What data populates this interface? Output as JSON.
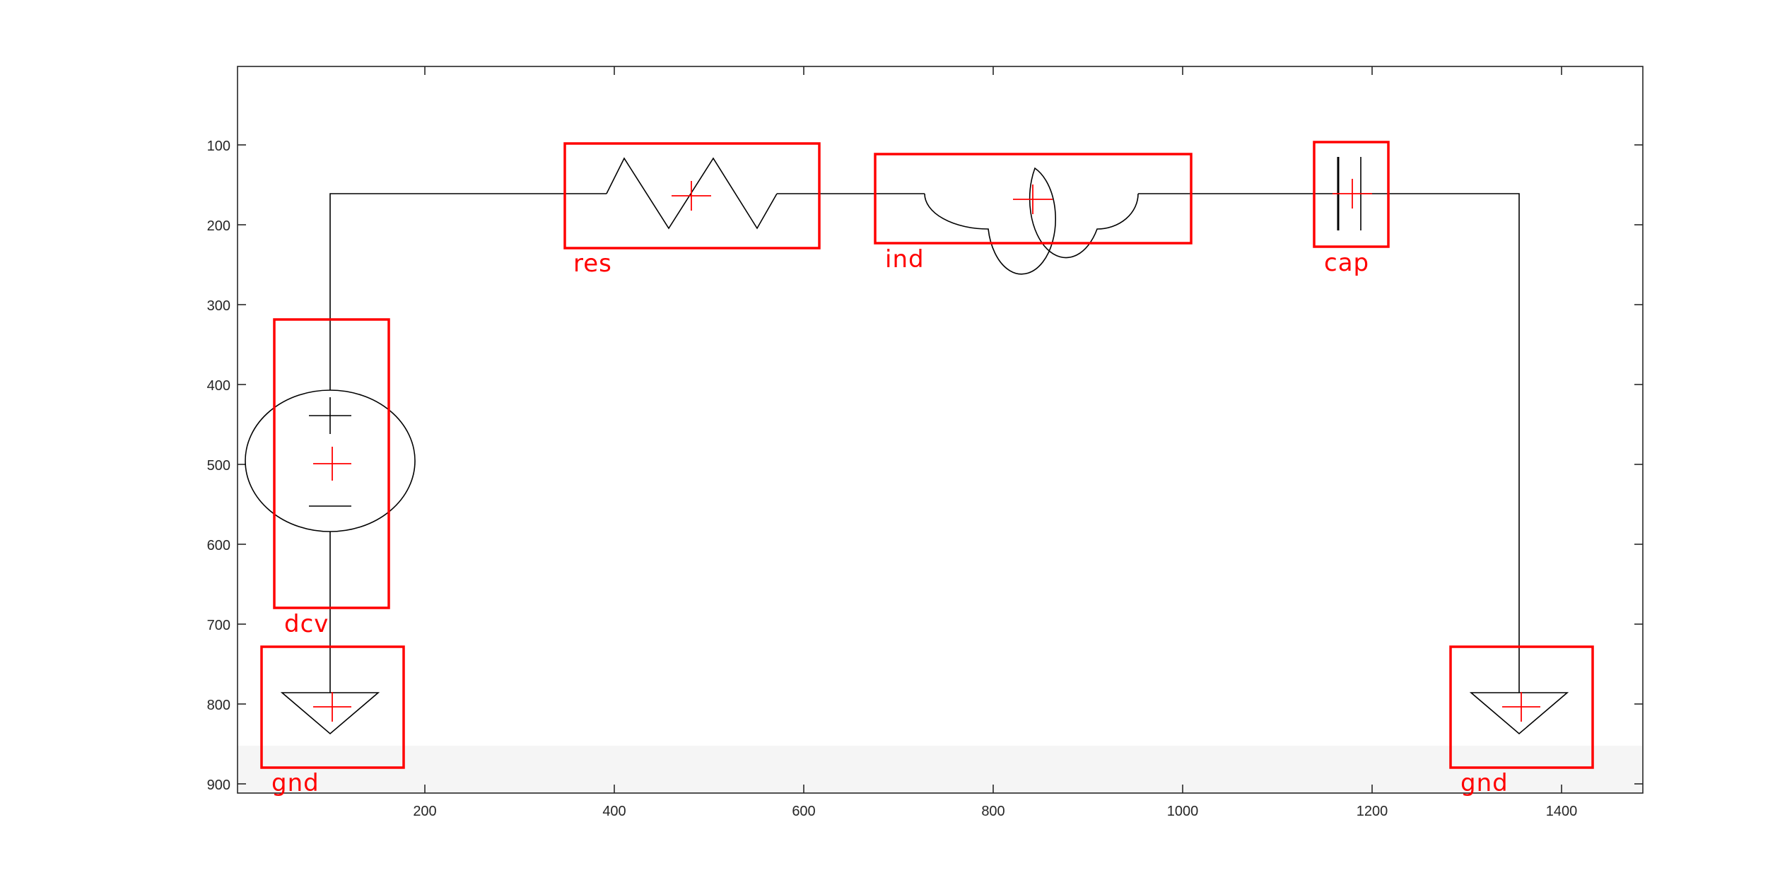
{
  "axes": {
    "x_ticks": [
      "200",
      "400",
      "600",
      "800",
      "1000",
      "1200",
      "1400"
    ],
    "y_ticks": [
      "100",
      "200",
      "300",
      "400",
      "500",
      "600",
      "700",
      "800",
      "900"
    ]
  },
  "components": [
    {
      "id": "res",
      "label": "res"
    },
    {
      "id": "ind",
      "label": "ind"
    },
    {
      "id": "cap",
      "label": "cap"
    },
    {
      "id": "dcv",
      "label": "dcv"
    },
    {
      "id": "gnd-left",
      "label": "gnd"
    },
    {
      "id": "gnd-right",
      "label": "gnd"
    }
  ],
  "colors": {
    "detection_box": "#ff0000",
    "circuit_line": "#000000",
    "axes": "#262626",
    "shaded_strip": "#f5f5f5"
  }
}
